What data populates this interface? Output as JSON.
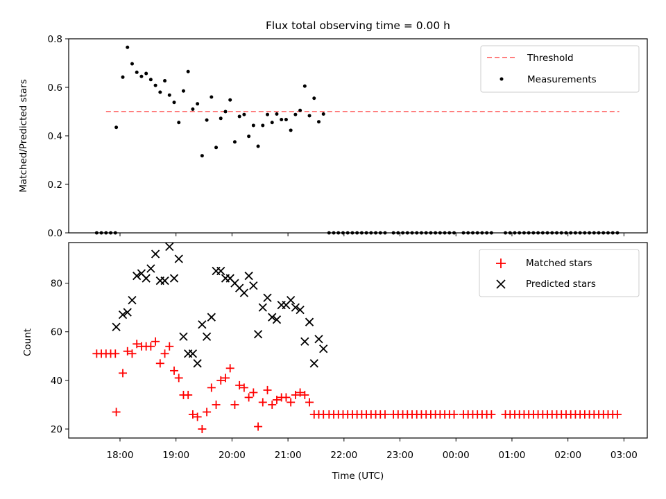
{
  "chart_data": [
    {
      "type": "scatter",
      "title": "Flux total observing time = 0.00 h",
      "xlabel": "",
      "ylabel": "Matched/Predicted stars",
      "ylim": [
        0,
        0.8
      ],
      "yticks": [
        "0.0",
        "0.2",
        "0.4",
        "0.6",
        "0.8"
      ],
      "legend_position": "top-right",
      "series": [
        {
          "name": "Threshold",
          "kind": "dashed-line",
          "color": "#ff7f7f",
          "x_start": "17:45",
          "x_end": "02:55",
          "y": 0.5
        },
        {
          "name": "Measurements",
          "kind": "dot",
          "color": "#000000",
          "points": [
            [
              "17:35",
              0
            ],
            [
              "17:40",
              0
            ],
            [
              "17:45",
              0
            ],
            [
              "17:50",
              0
            ],
            [
              "17:55",
              0
            ],
            [
              "17:56",
              0.435
            ],
            [
              "18:03",
              0.642
            ],
            [
              "18:08",
              0.765
            ],
            [
              "18:13",
              0.697
            ],
            [
              "18:18",
              0.662
            ],
            [
              "18:23",
              0.645
            ],
            [
              "18:28",
              0.657
            ],
            [
              "18:33",
              0.632
            ],
            [
              "18:38",
              0.608
            ],
            [
              "18:43",
              0.58
            ],
            [
              "18:48",
              0.627
            ],
            [
              "18:53",
              0.568
            ],
            [
              "18:58",
              0.538
            ],
            [
              "19:03",
              0.455
            ],
            [
              "19:08",
              0.585
            ],
            [
              "19:13",
              0.665
            ],
            [
              "19:18",
              0.51
            ],
            [
              "19:23",
              0.532
            ],
            [
              "19:28",
              0.318
            ],
            [
              "19:33",
              0.465
            ],
            [
              "19:38",
              0.56
            ],
            [
              "19:43",
              0.352
            ],
            [
              "19:48",
              0.472
            ],
            [
              "19:53",
              0.5
            ],
            [
              "19:58",
              0.548
            ],
            [
              "20:03",
              0.375
            ],
            [
              "20:08",
              0.48
            ],
            [
              "20:13",
              0.488
            ],
            [
              "20:18",
              0.398
            ],
            [
              "20:23",
              0.443
            ],
            [
              "20:28",
              0.357
            ],
            [
              "20:33",
              0.443
            ],
            [
              "20:38",
              0.488
            ],
            [
              "20:43",
              0.455
            ],
            [
              "20:48",
              0.49
            ],
            [
              "20:53",
              0.467
            ],
            [
              "20:58",
              0.467
            ],
            [
              "21:03",
              0.423
            ],
            [
              "21:08",
              0.488
            ],
            [
              "21:13",
              0.505
            ],
            [
              "21:18",
              0.605
            ],
            [
              "21:23",
              0.483
            ],
            [
              "21:28",
              0.555
            ],
            [
              "21:33",
              0.458
            ],
            [
              "21:38",
              0.49
            ],
            [
              "21:44",
              0
            ],
            [
              "21:49",
              0
            ],
            [
              "21:54",
              0
            ],
            [
              "21:59",
              0
            ],
            [
              "22:04",
              0
            ],
            [
              "22:09",
              0
            ],
            [
              "22:14",
              0
            ],
            [
              "22:19",
              0
            ],
            [
              "22:24",
              0
            ],
            [
              "22:29",
              0
            ],
            [
              "22:34",
              0
            ],
            [
              "22:39",
              0
            ],
            [
              "22:44",
              0
            ],
            [
              "22:53",
              0
            ],
            [
              "22:58",
              0
            ],
            [
              "23:03",
              0
            ],
            [
              "23:08",
              0
            ],
            [
              "23:13",
              0
            ],
            [
              "23:18",
              0
            ],
            [
              "23:23",
              0
            ],
            [
              "23:28",
              0
            ],
            [
              "23:33",
              0
            ],
            [
              "23:38",
              0
            ],
            [
              "23:43",
              0
            ],
            [
              "23:48",
              0
            ],
            [
              "23:53",
              0
            ],
            [
              "23:58",
              0
            ],
            [
              "00:08",
              0
            ],
            [
              "00:13",
              0
            ],
            [
              "00:18",
              0
            ],
            [
              "00:23",
              0
            ],
            [
              "00:28",
              0
            ],
            [
              "00:33",
              0
            ],
            [
              "00:38",
              0
            ],
            [
              "00:53",
              0
            ],
            [
              "00:58",
              0
            ],
            [
              "01:03",
              0
            ],
            [
              "01:08",
              0
            ],
            [
              "01:13",
              0
            ],
            [
              "01:18",
              0
            ],
            [
              "01:23",
              0
            ],
            [
              "01:28",
              0
            ],
            [
              "01:33",
              0
            ],
            [
              "01:38",
              0
            ],
            [
              "01:43",
              0
            ],
            [
              "01:48",
              0
            ],
            [
              "01:53",
              0
            ],
            [
              "01:58",
              0
            ],
            [
              "02:03",
              0
            ],
            [
              "02:08",
              0
            ],
            [
              "02:13",
              0
            ],
            [
              "02:18",
              0
            ],
            [
              "02:23",
              0
            ],
            [
              "02:28",
              0
            ],
            [
              "02:33",
              0
            ],
            [
              "02:38",
              0
            ],
            [
              "02:43",
              0
            ],
            [
              "02:48",
              0
            ],
            [
              "02:53",
              0
            ]
          ]
        }
      ]
    },
    {
      "type": "scatter",
      "title": "",
      "xlabel": "Time (UTC)",
      "ylabel": "Count",
      "ylim": [
        16.3,
        96.7
      ],
      "yticks": [
        "20",
        "40",
        "60",
        "80"
      ],
      "xlim": [
        "17:05",
        "03:25"
      ],
      "xticks": [
        "18:00",
        "19:00",
        "20:00",
        "21:00",
        "22:00",
        "23:00",
        "00:00",
        "01:00",
        "02:00",
        "03:00"
      ],
      "legend_position": "top-right",
      "series": [
        {
          "name": "Matched stars",
          "marker": "+",
          "color": "#ff0000",
          "points": [
            [
              "17:35",
              51
            ],
            [
              "17:40",
              51
            ],
            [
              "17:45",
              51
            ],
            [
              "17:50",
              51
            ],
            [
              "17:55",
              51
            ],
            [
              "17:56",
              27
            ],
            [
              "18:03",
              43
            ],
            [
              "18:08",
              52
            ],
            [
              "18:13",
              51
            ],
            [
              "18:18",
              55
            ],
            [
              "18:23",
              54
            ],
            [
              "18:28",
              54
            ],
            [
              "18:33",
              54
            ],
            [
              "18:38",
              56
            ],
            [
              "18:43",
              47
            ],
            [
              "18:48",
              51
            ],
            [
              "18:53",
              54
            ],
            [
              "18:58",
              44
            ],
            [
              "19:03",
              41
            ],
            [
              "19:08",
              34
            ],
            [
              "19:13",
              34
            ],
            [
              "19:18",
              26
            ],
            [
              "19:23",
              25
            ],
            [
              "19:28",
              20
            ],
            [
              "19:33",
              27
            ],
            [
              "19:38",
              37
            ],
            [
              "19:43",
              30
            ],
            [
              "19:48",
              40
            ],
            [
              "19:53",
              41
            ],
            [
              "19:58",
              45
            ],
            [
              "20:03",
              30
            ],
            [
              "20:08",
              38
            ],
            [
              "20:13",
              37
            ],
            [
              "20:18",
              33
            ],
            [
              "20:23",
              35
            ],
            [
              "20:28",
              21
            ],
            [
              "20:33",
              31
            ],
            [
              "20:38",
              36
            ],
            [
              "20:43",
              30
            ],
            [
              "20:48",
              32
            ],
            [
              "20:53",
              33
            ],
            [
              "20:58",
              33
            ],
            [
              "21:03",
              31
            ],
            [
              "21:08",
              34
            ],
            [
              "21:13",
              35
            ],
            [
              "21:18",
              34
            ],
            [
              "21:23",
              31
            ],
            [
              "21:28",
              26
            ],
            [
              "21:33",
              26
            ],
            [
              "21:38",
              26
            ],
            [
              "21:44",
              26
            ],
            [
              "21:49",
              26
            ],
            [
              "21:54",
              26
            ],
            [
              "21:59",
              26
            ],
            [
              "22:04",
              26
            ],
            [
              "22:09",
              26
            ],
            [
              "22:14",
              26
            ],
            [
              "22:19",
              26
            ],
            [
              "22:24",
              26
            ],
            [
              "22:29",
              26
            ],
            [
              "22:34",
              26
            ],
            [
              "22:39",
              26
            ],
            [
              "22:44",
              26
            ],
            [
              "22:53",
              26
            ],
            [
              "22:58",
              26
            ],
            [
              "23:03",
              26
            ],
            [
              "23:08",
              26
            ],
            [
              "23:13",
              26
            ],
            [
              "23:18",
              26
            ],
            [
              "23:23",
              26
            ],
            [
              "23:28",
              26
            ],
            [
              "23:33",
              26
            ],
            [
              "23:38",
              26
            ],
            [
              "23:43",
              26
            ],
            [
              "23:48",
              26
            ],
            [
              "23:53",
              26
            ],
            [
              "23:58",
              26
            ],
            [
              "00:08",
              26
            ],
            [
              "00:13",
              26
            ],
            [
              "00:18",
              26
            ],
            [
              "00:23",
              26
            ],
            [
              "00:28",
              26
            ],
            [
              "00:33",
              26
            ],
            [
              "00:38",
              26
            ],
            [
              "00:53",
              26
            ],
            [
              "00:58",
              26
            ],
            [
              "01:03",
              26
            ],
            [
              "01:08",
              26
            ],
            [
              "01:13",
              26
            ],
            [
              "01:18",
              26
            ],
            [
              "01:23",
              26
            ],
            [
              "01:28",
              26
            ],
            [
              "01:33",
              26
            ],
            [
              "01:38",
              26
            ],
            [
              "01:43",
              26
            ],
            [
              "01:48",
              26
            ],
            [
              "01:53",
              26
            ],
            [
              "01:58",
              26
            ],
            [
              "02:03",
              26
            ],
            [
              "02:08",
              26
            ],
            [
              "02:13",
              26
            ],
            [
              "02:18",
              26
            ],
            [
              "02:23",
              26
            ],
            [
              "02:28",
              26
            ],
            [
              "02:33",
              26
            ],
            [
              "02:38",
              26
            ],
            [
              "02:43",
              26
            ],
            [
              "02:48",
              26
            ],
            [
              "02:53",
              26
            ]
          ]
        },
        {
          "name": "Predicted stars",
          "marker": "x",
          "color": "#000000",
          "points": [
            [
              "17:56",
              62
            ],
            [
              "18:03",
              67
            ],
            [
              "18:08",
              68
            ],
            [
              "18:13",
              73
            ],
            [
              "18:18",
              83
            ],
            [
              "18:23",
              84
            ],
            [
              "18:28",
              82
            ],
            [
              "18:33",
              86
            ],
            [
              "18:38",
              92
            ],
            [
              "18:43",
              81
            ],
            [
              "18:48",
              81
            ],
            [
              "18:53",
              95
            ],
            [
              "18:58",
              82
            ],
            [
              "19:03",
              90
            ],
            [
              "19:08",
              58
            ],
            [
              "19:13",
              51
            ],
            [
              "19:18",
              51
            ],
            [
              "19:23",
              47
            ],
            [
              "19:28",
              63
            ],
            [
              "19:33",
              58
            ],
            [
              "19:38",
              66
            ],
            [
              "19:43",
              85
            ],
            [
              "19:48",
              85
            ],
            [
              "19:53",
              82
            ],
            [
              "19:58",
              82
            ],
            [
              "20:03",
              80
            ],
            [
              "20:08",
              78
            ],
            [
              "20:13",
              76
            ],
            [
              "20:18",
              83
            ],
            [
              "20:23",
              79
            ],
            [
              "20:28",
              59
            ],
            [
              "20:33",
              70
            ],
            [
              "20:38",
              74
            ],
            [
              "20:43",
              66
            ],
            [
              "20:48",
              65
            ],
            [
              "20:53",
              71
            ],
            [
              "20:58",
              71
            ],
            [
              "21:03",
              73
            ],
            [
              "21:08",
              70
            ],
            [
              "21:13",
              69
            ],
            [
              "21:18",
              56
            ],
            [
              "21:23",
              64
            ],
            [
              "21:28",
              47
            ],
            [
              "21:33",
              57
            ],
            [
              "21:38",
              53
            ]
          ]
        }
      ]
    }
  ]
}
